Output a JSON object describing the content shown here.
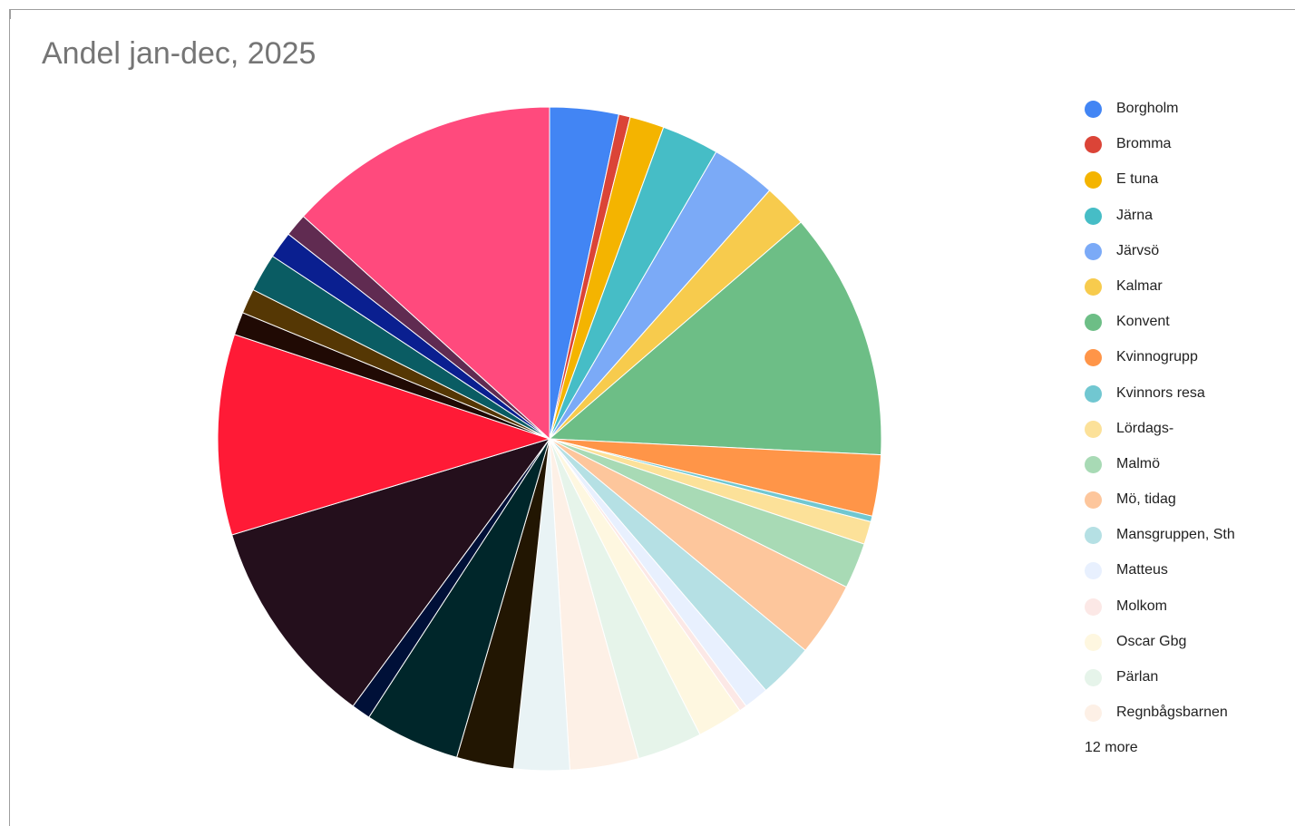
{
  "chart_data": {
    "type": "pie",
    "title": "Andel jan-dec, 2025",
    "legend_position": "right",
    "legend_more": "12 more",
    "slices": [
      {
        "name": "Borgholm",
        "value": 3.6,
        "color": "#4285f4"
      },
      {
        "name": "Bromma",
        "value": 0.6,
        "color": "#db4437"
      },
      {
        "name": "E tuna",
        "value": 1.8,
        "color": "#f4b400"
      },
      {
        "name": "Järna",
        "value": 3.0,
        "color": "#46bdc6"
      },
      {
        "name": "Järvsö",
        "value": 3.4,
        "color": "#7baaf7"
      },
      {
        "name": "Kalmar",
        "value": 2.3,
        "color": "#f7cb4d"
      },
      {
        "name": "Konvent",
        "value": 13.0,
        "color": "#6dbe86"
      },
      {
        "name": "Kvinnogrupp",
        "value": 3.2,
        "color": "#ff9548"
      },
      {
        "name": "Kvinnors resa",
        "value": 0.3,
        "color": "#71c7d1"
      },
      {
        "name": "Lördags-",
        "value": 1.2,
        "color": "#fce199"
      },
      {
        "name": "Malmö",
        "value": 2.4,
        "color": "#a8dab5"
      },
      {
        "name": "Mö, tidag",
        "value": 3.9,
        "color": "#fdc69c"
      },
      {
        "name": "Mansgruppen, Sth",
        "value": 2.9,
        "color": "#b5e0e4"
      },
      {
        "name": "Matteus",
        "value": 1.3,
        "color": "#e8f0fe"
      },
      {
        "name": "Molkom",
        "value": 0.4,
        "color": "#fce8e6"
      },
      {
        "name": "Oscar Gbg",
        "value": 2.4,
        "color": "#fef7e0"
      },
      {
        "name": "Pärlan",
        "value": 3.4,
        "color": "#e6f4ea"
      },
      {
        "name": "Regnbågsbarnen",
        "value": 3.6,
        "color": "#fdf0e6"
      },
      {
        "value": 2.9,
        "color": "#e9f3f5"
      },
      {
        "value": 3.0,
        "color": "#221602"
      },
      {
        "value": 5.0,
        "color": "#00262a"
      },
      {
        "value": 1.0,
        "color": "#001038"
      },
      {
        "value": 11.0,
        "color": "#240f1c"
      },
      {
        "value": 10.5,
        "color": "#ff1a36"
      },
      {
        "value": 1.2,
        "color": "#200a04"
      },
      {
        "value": 1.3,
        "color": "#553704"
      },
      {
        "value": 2.0,
        "color": "#0a5c63"
      },
      {
        "value": 1.4,
        "color": "#0a1f90"
      },
      {
        "value": 1.2,
        "color": "#602b51"
      },
      {
        "value": 14.3,
        "color": "#ff4a7d"
      }
    ]
  }
}
